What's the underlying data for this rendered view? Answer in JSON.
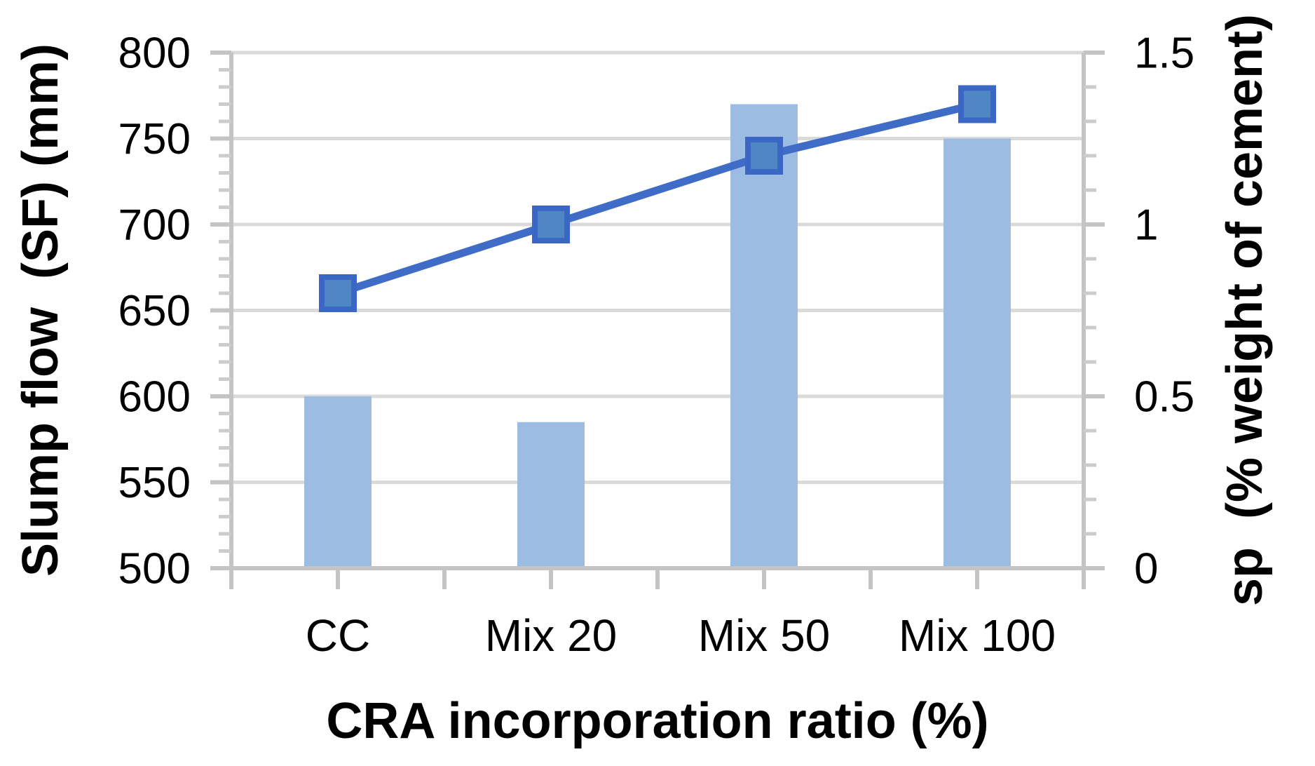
{
  "chart_data": {
    "type": "bar",
    "subtype": "combo-bar-line-dual-axis",
    "categories": [
      "CC",
      "Mix 20",
      "Mix 50",
      "Mix 100"
    ],
    "series": [
      {
        "name": "Slump flow (SF)",
        "type": "bar",
        "axis": "left",
        "values": [
          600,
          585,
          770,
          750
        ]
      },
      {
        "name": "sp dosage",
        "type": "line",
        "axis": "right",
        "values": [
          0.8,
          1.0,
          1.2,
          1.35
        ],
        "marker": "square"
      }
    ],
    "title": "",
    "xlabel": "CRA incorporation ratio (%)",
    "left_axis": {
      "title": "Slump flow  (SF) (mm)",
      "min": 500,
      "max": 800,
      "major_step": 50,
      "minor_step": 10,
      "tick_labels": [
        "800",
        "750",
        "700",
        "650",
        "600",
        "550",
        "500"
      ]
    },
    "right_axis": {
      "title": "sp  (% weight of cement)",
      "min": 0,
      "max": 1.5,
      "major_step": 0.5,
      "minor_step": 0.1,
      "tick_labels": [
        "1.5",
        "1",
        "0.5",
        "0"
      ]
    },
    "grid": true,
    "legend": false
  },
  "colors": {
    "bar_fill": "#9CBCE4",
    "line_stroke": "#3E6CC6",
    "marker_fill": "#4F86C4",
    "marker_stroke": "#3A66C4",
    "gridline": "#DADADA",
    "axis_line": "#C4C4C4",
    "minor_tick": "#CCCCCC",
    "text": "#000000",
    "background": "#FFFFFF"
  }
}
